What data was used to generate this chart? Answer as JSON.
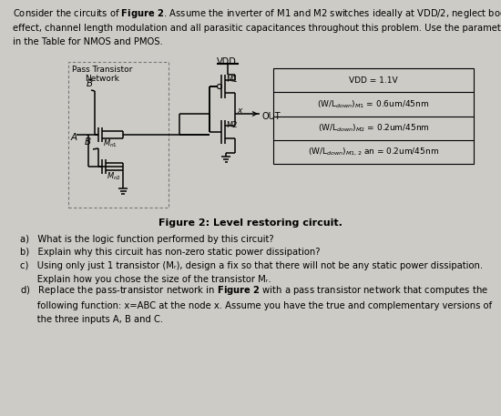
{
  "bg_color": "#cccbc6",
  "figure_caption": "Figure 2: Level restoring circuit.",
  "table_rows": [
    "VDD = 1.1V",
    "(W/L_{down})_{M1} = 0.6um/45nm",
    "(W/L_{down})_{M2} = 0.2um/45nm",
    "(W/L_{down})_{M1,2} an = 0.2um/45nm"
  ],
  "circuit": {
    "vdd_label": "VDD",
    "out_label": "OUT",
    "m1_label": "M1",
    "m2_label": "M2",
    "mn1_label": "M_{n1}",
    "mn2_label": "M_{n2}",
    "A_label": "A",
    "B_label": "B",
    "Bbar_label": "B",
    "x_label": "x",
    "ptn_label1": "Pass Transistor",
    "ptn_label2": "Network"
  },
  "para_text": "Consider the circuits of Figure 2. Assume the inverter of M1 and M2 switches ideally at VDD/2, neglect body effect, channel length modulation and all parasitic capacitances throughout this problem. Use the parameters in the Table for NMOS and PMOS.",
  "q_a": "What is the logic function performed by this circuit?",
  "q_b": "Explain why this circuit has non-zero static power dissipation?",
  "q_c1": "Using only just 1 transistor (M",
  "q_c2": "), design a fix so that there will not be any static power dissipation.",
  "q_c3": "Explain how you chose the size of the transistor M",
  "q_d1": "Replace the pass-transistor network in ",
  "q_d2": "Figure 2",
  "q_d3": " with a pass transistor network that computes the following function: x=ABC at the node x. Assume you have the true and complementary versions of the three inputs A, B and C."
}
